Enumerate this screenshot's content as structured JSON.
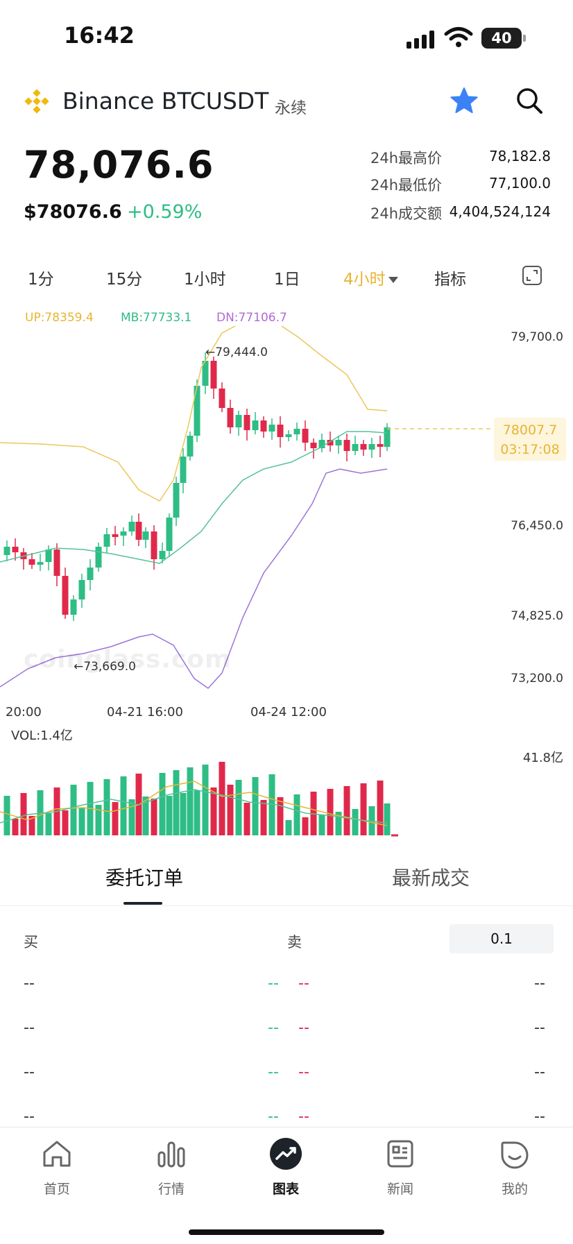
{
  "status_bar": {
    "time": "16:42",
    "battery": "40"
  },
  "header": {
    "exchange_symbol": "Binance BTCUSDT",
    "contract_tag": "永续",
    "logo_icon": "binance-logo-icon",
    "star_icon": "star-icon",
    "search_icon": "search-icon"
  },
  "price": {
    "last": "78,076.6",
    "usd": "$78076.6",
    "change": "+0.59%",
    "high_label": "24h最高价",
    "high": "78,182.8",
    "low_label": "24h最低价",
    "low": "77,100.0",
    "volume_label": "24h成交额",
    "volume": "4,404,524,124"
  },
  "intervals": [
    {
      "label": "1分"
    },
    {
      "label": "15分"
    },
    {
      "label": "1小时"
    },
    {
      "label": "1日"
    },
    {
      "label": "4小时",
      "active": true
    },
    {
      "label": "指标"
    }
  ],
  "chart_data": {
    "type": "candlestick",
    "indicator": {
      "up": "UP:78359.4",
      "mb": "MB:77733.1",
      "dn": "DN:77106.7"
    },
    "y_ticks": [
      "79,700.0",
      "76,450.0",
      "74,825.0",
      "73,200.0"
    ],
    "x_ticks": [
      "20:00",
      "04-21 16:00",
      "04-24 12:00"
    ],
    "high_label": "←79,444.0",
    "low_label": "←73,669.0",
    "current_price": "78007.7",
    "countdown": "03:17:08",
    "watermark": "coinglass.com",
    "volume_label": "VOL:1.4亿",
    "volume_max": "41.8亿",
    "colors": {
      "up": "#2ebd85",
      "down": "#e0294a",
      "boll_up": "#ecc75a",
      "boll_mb": "#57c09a",
      "boll_dn": "#9b73d8"
    }
  },
  "orderbook": {
    "tabs": [
      "委托订单",
      "最新成交"
    ],
    "buy_label": "买",
    "sell_label": "卖",
    "precision": "0.1",
    "rows": [
      {
        "buy": "--",
        "bid": "--",
        "ask": "--",
        "sell": "--"
      },
      {
        "buy": "--",
        "bid": "--",
        "ask": "--",
        "sell": "--"
      },
      {
        "buy": "--",
        "bid": "--",
        "ask": "--",
        "sell": "--"
      },
      {
        "buy": "--",
        "bid": "--",
        "ask": "--",
        "sell": "--"
      }
    ]
  },
  "nav": [
    {
      "label": "首页",
      "icon": "home-icon"
    },
    {
      "label": "行情",
      "icon": "market-bars-icon"
    },
    {
      "label": "图表",
      "icon": "chart-trend-icon",
      "active": true
    },
    {
      "label": "新闻",
      "icon": "news-icon"
    },
    {
      "label": "我的",
      "icon": "profile-icon"
    }
  ]
}
